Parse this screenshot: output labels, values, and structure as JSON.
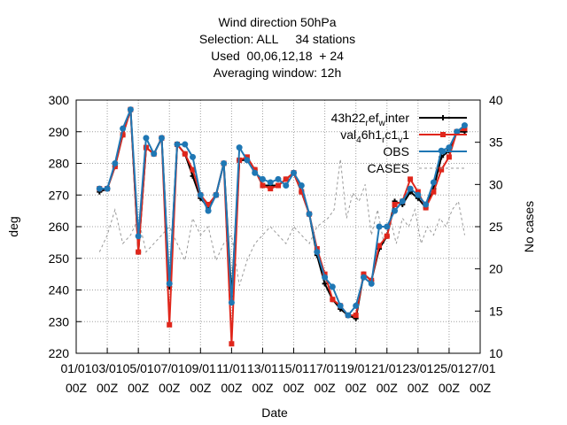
{
  "chart_data": {
    "type": "line",
    "title_lines": [
      "Wind direction 50hPa",
      "Selection: ALL     34 stations",
      "Used  00,06,12,18  + 24",
      "Averaging window: 12h"
    ],
    "xlabel": "Date",
    "ylabel": "deg",
    "y2label": "No cases",
    "ylim": [
      220,
      300
    ],
    "y2lim": [
      10,
      40
    ],
    "xlim": [
      0,
      26
    ],
    "x_unit": "days since 01/01 00Z",
    "yticks": [
      220,
      230,
      240,
      250,
      260,
      270,
      280,
      290,
      300
    ],
    "y2ticks": [
      10,
      15,
      20,
      25,
      30,
      35,
      40
    ],
    "xticks": [
      {
        "v": 0,
        "l1": "01/01",
        "l2": "00Z"
      },
      {
        "v": 2,
        "l1": "03/01",
        "l2": "00Z"
      },
      {
        "v": 4,
        "l1": "05/01",
        "l2": "00Z"
      },
      {
        "v": 6,
        "l1": "07/01",
        "l2": "00Z"
      },
      {
        "v": 8,
        "l1": "09/01",
        "l2": "00Z"
      },
      {
        "v": 10,
        "l1": "11/01",
        "l2": "00Z"
      },
      {
        "v": 12,
        "l1": "13/01",
        "l2": "00Z"
      },
      {
        "v": 14,
        "l1": "15/01",
        "l2": "00Z"
      },
      {
        "v": 16,
        "l1": "17/01",
        "l2": "00Z"
      },
      {
        "v": 18,
        "l1": "19/01",
        "l2": "00Z"
      },
      {
        "v": 20,
        "l1": "21/01",
        "l2": "00Z"
      },
      {
        "v": 22,
        "l1": "23/01",
        "l2": "00Z"
      },
      {
        "v": 24,
        "l1": "25/01",
        "l2": "00Z"
      },
      {
        "v": 26,
        "l1": "27/01",
        "l2": "00Z"
      }
    ],
    "grid": true,
    "legend_position": "top-right",
    "x": [
      1.5,
      2.0,
      2.5,
      3.0,
      3.5,
      4.0,
      4.5,
      5.0,
      5.5,
      6.0,
      6.5,
      7.0,
      7.5,
      8.0,
      8.5,
      9.0,
      9.5,
      10.0,
      10.5,
      11.0,
      11.5,
      12.0,
      12.5,
      13.0,
      13.5,
      14.0,
      14.5,
      15.0,
      15.5,
      16.0,
      16.5,
      17.0,
      17.5,
      18.0,
      18.5,
      19.0,
      19.5,
      20.0,
      20.5,
      21.0,
      21.5,
      22.0,
      22.5,
      23.0,
      23.5,
      24.0,
      24.5,
      25.0
    ],
    "series": [
      {
        "name": "43h22 ref winter",
        "legend_main": "43h22",
        "legend_sub1": "r",
        "legend_mid": "ef",
        "legend_sub2": "w",
        "legend_tail": "inter",
        "color": "#000000",
        "marker": "plus",
        "axis": "left",
        "values": [
          271,
          272,
          279,
          289,
          297,
          252,
          285,
          283,
          288,
          241,
          286,
          283,
          276,
          269,
          266,
          270,
          280,
          238,
          281,
          281,
          278,
          273,
          273,
          273,
          275,
          277,
          271,
          264,
          251,
          242,
          237,
          234,
          232,
          231,
          245,
          243,
          253,
          257,
          268,
          267,
          271,
          269,
          266,
          272,
          282,
          284,
          290,
          290
        ]
      },
      {
        "name": "val46h1rc1v1",
        "legend_main": "val",
        "legend_sub1": "4",
        "legend_mid": "6h1",
        "legend_sub2": "r",
        "legend_tail": "c1",
        "legend_sub3": "v",
        "legend_tail2": "1",
        "color": "#e0261b",
        "marker": "square",
        "axis": "left",
        "values": [
          272,
          272,
          279,
          289,
          297,
          252,
          285,
          283,
          288,
          229,
          286,
          283,
          278,
          270,
          267,
          270,
          280,
          223,
          281,
          282,
          278,
          273,
          272,
          273,
          275,
          277,
          271,
          264,
          253,
          245,
          237,
          235,
          232,
          232,
          245,
          243,
          254,
          257,
          267,
          268,
          275,
          271,
          266,
          271,
          278,
          282,
          290,
          291
        ]
      },
      {
        "name": "OBS",
        "color": "#1f77b4",
        "marker": "circle",
        "axis": "left",
        "values": [
          272,
          272,
          280,
          291,
          297,
          257,
          288,
          283,
          288,
          242,
          286,
          286,
          282,
          270,
          265,
          270,
          280,
          236,
          285,
          281,
          277,
          275,
          274,
          275,
          273,
          277,
          273,
          264,
          252,
          244,
          241,
          235,
          232,
          235,
          244,
          242,
          260,
          260,
          265,
          268,
          272,
          270,
          267,
          274,
          284,
          285,
          290,
          292
        ]
      },
      {
        "name": "CASES",
        "color": "#999999",
        "dashed": true,
        "axis": "right",
        "values": [
          22,
          24,
          27,
          23,
          24,
          26,
          22,
          23,
          24,
          25,
          23,
          21,
          26,
          24,
          25,
          21,
          23,
          24,
          18,
          21,
          23,
          24,
          25,
          24,
          23,
          25,
          24,
          23,
          25,
          24,
          27,
          25,
          33,
          26,
          29,
          28,
          25,
          24,
          23,
          25,
          23,
          25,
          26,
          22,
          24,
          25,
          27,
          24
        ],
        "extra_x": [
          16.2,
          16.6,
          17.0,
          17.4,
          17.8,
          18.2,
          18.6,
          19.0,
          19.4,
          19.8,
          20.2,
          20.6,
          21.0,
          21.4,
          21.8,
          22.2,
          22.6,
          23.0,
          23.4,
          23.8,
          24.2,
          24.6,
          25.0
        ],
        "extra_values": [
          26,
          27,
          33,
          26,
          29,
          28,
          30,
          24,
          27,
          23,
          26,
          23,
          26,
          25,
          27,
          23,
          25,
          24,
          26,
          25,
          27,
          28,
          24
        ]
      }
    ]
  }
}
